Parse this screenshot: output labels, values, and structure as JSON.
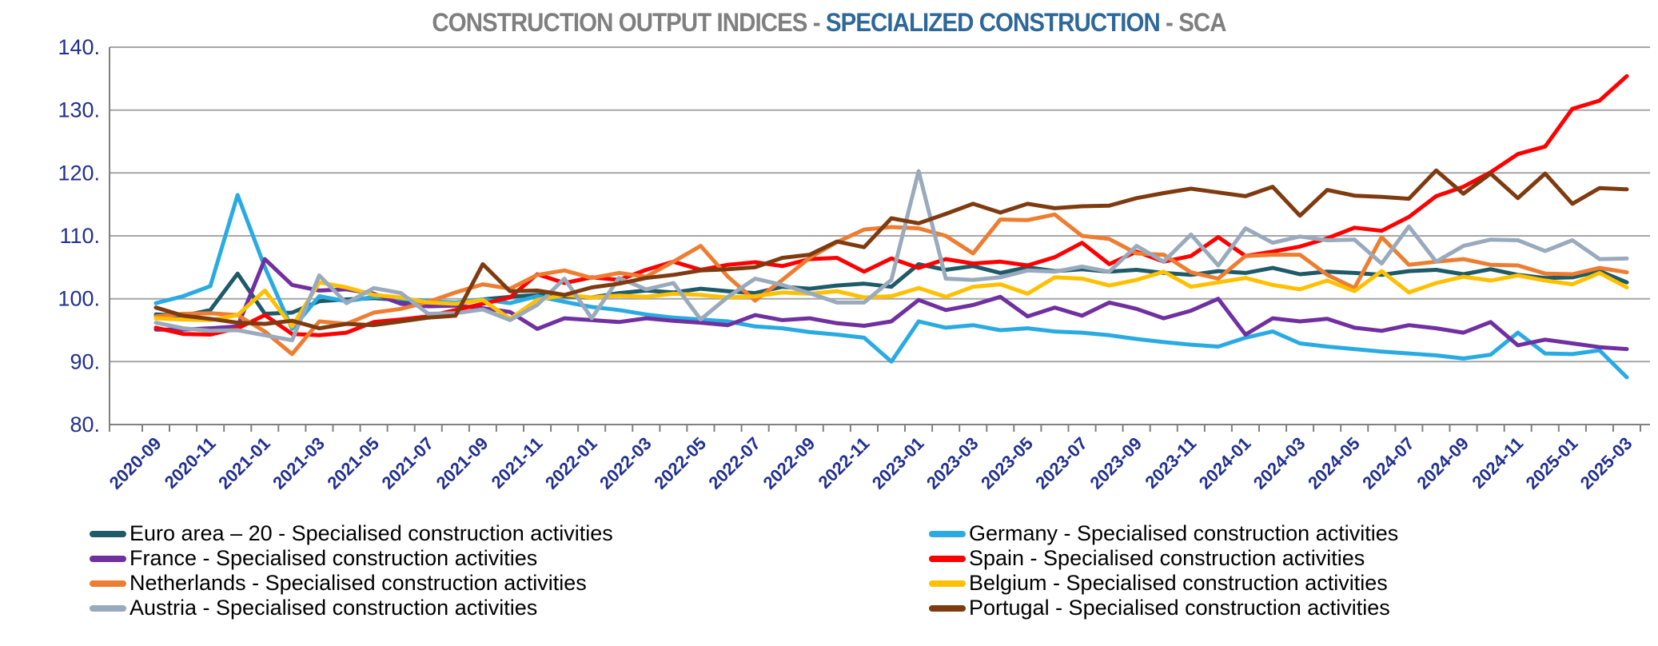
{
  "title": {
    "prefix": "CONSTRUCTION OUTPUT INDICES - ",
    "highlight": "SPECIALIZED CONSTRUCTION",
    "suffix": " - SCA"
  },
  "colors": {
    "grid": "#A6A6A6",
    "axis": "#808080",
    "tick_label": "#21308F",
    "title_gray": "#7F7F7F",
    "title_blue": "#2D6899",
    "background": "#FFFFFF"
  },
  "chart_data": {
    "type": "line",
    "title": "CONSTRUCTION OUTPUT INDICES - SPECIALIZED CONSTRUCTION - SCA",
    "xlabel": "",
    "ylabel": "",
    "ylim": [
      80,
      140
    ],
    "ytick_step": 10,
    "ytick_labels": [
      "80.",
      "90.",
      "100.",
      "110.",
      "120.",
      "130.",
      "140."
    ],
    "grid": true,
    "legend_position": "bottom",
    "x_label_every": 2,
    "x": [
      "2020-09",
      "2020-10",
      "2020-11",
      "2020-12",
      "2021-01",
      "2021-02",
      "2021-03",
      "2021-04",
      "2021-05",
      "2021-06",
      "2021-07",
      "2021-08",
      "2021-09",
      "2021-10",
      "2021-11",
      "2021-12",
      "2022-01",
      "2022-02",
      "2022-03",
      "2022-04",
      "2022-05",
      "2022-06",
      "2022-07",
      "2022-08",
      "2022-09",
      "2022-10",
      "2022-11",
      "2022-12",
      "2023-01",
      "2023-02",
      "2023-03",
      "2023-04",
      "2023-05",
      "2023-06",
      "2023-07",
      "2023-08",
      "2023-09",
      "2023-10",
      "2023-11",
      "2023-12",
      "2024-01",
      "2024-02",
      "2024-03",
      "2024-04",
      "2024-05",
      "2024-06",
      "2024-07",
      "2024-08",
      "2024-09",
      "2024-10",
      "2024-11",
      "2024-12",
      "2025-01",
      "2025-02",
      "2025-03"
    ],
    "series": [
      {
        "name": "Euro area – 20  - Specialised construction activities",
        "color": "#1E5A68",
        "values": [
          97.5,
          97.3,
          98.2,
          104.0,
          97.6,
          97.8,
          99.6,
          99.9,
          100.1,
          99.8,
          99.4,
          99.2,
          99.9,
          100.3,
          100.6,
          100.4,
          100.2,
          100.9,
          101.3,
          101.0,
          101.6,
          101.2,
          100.9,
          101.9,
          101.6,
          102.1,
          102.4,
          101.9,
          105.5,
          104.6,
          105.2,
          104.1,
          105.0,
          104.4,
          104.7,
          104.3,
          104.6,
          104.1,
          103.8,
          104.4,
          104.1,
          104.9,
          103.9,
          104.3,
          104.1,
          103.8,
          104.4,
          104.6,
          103.9,
          104.7,
          103.8,
          103.3,
          103.4,
          104.4,
          102.6
        ]
      },
      {
        "name": "Germany - Specialised construction activities",
        "color": "#29ABE2",
        "values": [
          99.3,
          100.4,
          102.0,
          116.5,
          105.0,
          95.2,
          100.4,
          99.6,
          100.3,
          100.0,
          99.6,
          99.4,
          99.9,
          99.3,
          100.4,
          99.5,
          98.7,
          98.2,
          97.5,
          97.0,
          96.7,
          96.4,
          95.6,
          95.3,
          94.7,
          94.3,
          93.8,
          90.0,
          96.4,
          95.4,
          95.8,
          95.0,
          95.3,
          94.8,
          94.6,
          94.2,
          93.6,
          93.1,
          92.7,
          92.4,
          93.8,
          94.8,
          92.9,
          92.4,
          92.0,
          91.6,
          91.3,
          91.0,
          90.5,
          91.1,
          94.6,
          91.3,
          91.2,
          91.8,
          87.5
        ]
      },
      {
        "name": "France - Specialised construction activities",
        "color": "#7030A0",
        "values": [
          95.1,
          95.1,
          95.3,
          95.6,
          106.3,
          102.2,
          101.3,
          101.5,
          100.8,
          99.2,
          98.8,
          98.9,
          98.5,
          97.9,
          95.2,
          96.9,
          96.6,
          96.3,
          96.9,
          96.5,
          96.2,
          95.8,
          97.4,
          96.6,
          96.9,
          96.1,
          95.7,
          96.4,
          99.8,
          98.2,
          99.0,
          100.3,
          97.2,
          98.6,
          97.3,
          99.4,
          98.4,
          96.9,
          98.1,
          100.0,
          94.3,
          96.9,
          96.4,
          96.8,
          95.4,
          94.9,
          95.8,
          95.3,
          94.6,
          96.3,
          92.6,
          93.5,
          92.9,
          92.3,
          92.0
        ]
      },
      {
        "name": "Spain - Specialised construction activities",
        "color": "#FF0000",
        "values": [
          95.4,
          94.4,
          94.3,
          95.3,
          97.4,
          94.4,
          94.2,
          94.6,
          96.3,
          96.7,
          97.2,
          98.2,
          99.2,
          100.2,
          103.9,
          102.5,
          103.4,
          103.0,
          104.6,
          105.9,
          104.6,
          105.4,
          105.8,
          105.2,
          106.3,
          106.5,
          104.3,
          106.4,
          104.9,
          106.3,
          105.6,
          105.9,
          105.3,
          106.6,
          108.9,
          105.5,
          107.5,
          105.9,
          106.8,
          109.8,
          106.8,
          107.5,
          108.3,
          109.6,
          111.3,
          110.8,
          113.0,
          116.3,
          117.8,
          120.1,
          123.0,
          124.2,
          130.2,
          131.5,
          135.4
        ]
      },
      {
        "name": "Netherlands - Specialised construction activities",
        "color": "#ED7D31",
        "values": [
          97.2,
          97.6,
          97.7,
          97.4,
          94.8,
          91.2,
          96.4,
          96.0,
          97.8,
          98.4,
          99.5,
          101.0,
          102.3,
          101.6,
          103.8,
          104.5,
          103.3,
          104.1,
          103.5,
          105.9,
          108.4,
          103.5,
          99.7,
          103.0,
          106.5,
          109.0,
          111.0,
          111.4,
          111.2,
          110.0,
          107.2,
          112.6,
          112.5,
          113.4,
          110.0,
          109.5,
          107.2,
          107.0,
          104.2,
          103.2,
          106.8,
          107.0,
          107.0,
          103.8,
          101.7,
          109.8,
          105.4,
          105.9,
          106.3,
          105.4,
          105.3,
          104.0,
          103.9,
          104.9,
          104.2
        ]
      },
      {
        "name": "Belgium - Specialised construction activities",
        "color": "#FFC000",
        "values": [
          96.9,
          96.7,
          96.6,
          97.4,
          101.3,
          95.6,
          102.6,
          101.8,
          100.6,
          100.2,
          99.4,
          99.2,
          99.8,
          96.8,
          99.8,
          100.6,
          100.2,
          100.5,
          100.3,
          100.8,
          100.6,
          100.2,
          100.4,
          101.0,
          100.8,
          101.2,
          100.2,
          100.4,
          101.7,
          100.3,
          101.9,
          102.3,
          100.8,
          103.4,
          103.2,
          102.1,
          103.0,
          104.3,
          101.9,
          102.6,
          103.3,
          102.2,
          101.5,
          102.9,
          101.2,
          104.4,
          101.0,
          102.5,
          103.5,
          102.9,
          103.7,
          102.9,
          102.3,
          104.1,
          101.8
        ]
      },
      {
        "name": "Austria - Specialised construction activities",
        "color": "#99AABD",
        "values": [
          96.2,
          95.3,
          94.9,
          95.0,
          94.2,
          93.4,
          103.7,
          99.3,
          101.7,
          100.9,
          97.6,
          97.7,
          98.3,
          96.6,
          99.0,
          103.2,
          96.9,
          103.3,
          101.5,
          102.5,
          96.7,
          100.3,
          103.2,
          102.2,
          100.9,
          99.4,
          99.4,
          103.0,
          120.3,
          103.2,
          103.0,
          103.4,
          104.5,
          104.3,
          105.1,
          104.3,
          108.4,
          105.9,
          110.2,
          105.3,
          111.2,
          108.9,
          109.9,
          109.3,
          109.4,
          105.6,
          111.5,
          105.9,
          108.4,
          109.4,
          109.3,
          107.6,
          109.3,
          106.3,
          106.4
        ]
      },
      {
        "name": "Portugal - Specialised construction activities",
        "color": "#7F3B10",
        "values": [
          98.6,
          97.3,
          96.8,
          96.2,
          96.0,
          96.5,
          95.3,
          96.0,
          95.8,
          96.4,
          97.0,
          97.3,
          105.5,
          101.2,
          101.3,
          100.6,
          101.8,
          102.4,
          103.3,
          103.8,
          104.5,
          104.7,
          105.0,
          106.5,
          107.0,
          109.1,
          108.2,
          112.8,
          112.0,
          113.5,
          115.1,
          113.7,
          115.1,
          114.4,
          114.7,
          114.8,
          116.0,
          116.8,
          117.5,
          116.9,
          116.3,
          117.8,
          113.2,
          117.3,
          116.4,
          116.2,
          115.9,
          120.4,
          116.7,
          119.9,
          116.0,
          119.9,
          115.1,
          117.6,
          117.4
        ]
      }
    ]
  }
}
